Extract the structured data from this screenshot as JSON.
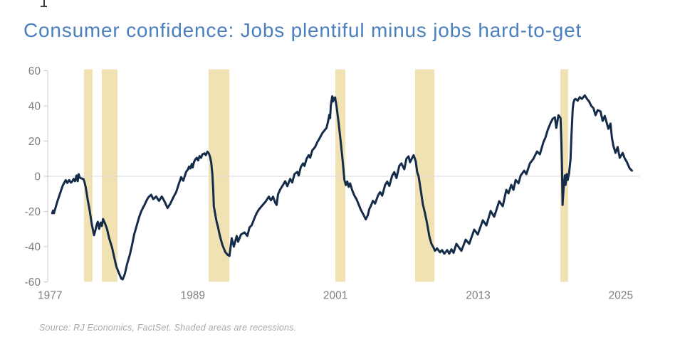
{
  "window": {
    "artifact_icon": "text-cursor-icon"
  },
  "source_note": "Source: RJ Economics, FactSet. Shaded areas are recessions.",
  "colors": {
    "title": "#4a80bd",
    "line": "#142c49",
    "recession_band": "#f1e2b4",
    "zero_gridline": "#d9d9d9",
    "axis": "#c9c9c9",
    "tick_label": "#808080",
    "source_text": "#a8a8a8",
    "background": "#ffffff"
  },
  "chart_data": {
    "type": "line",
    "title": "Consumer confidence: Jobs plentiful minus jobs hard-to-get",
    "xlabel": "",
    "ylabel": "",
    "legend": "none",
    "grid": "zero-line-only",
    "x_ticks": [
      1977,
      1989,
      2001,
      2013,
      2025
    ],
    "y_ticks": [
      60,
      40,
      20,
      0,
      -20,
      -40,
      -60
    ],
    "ylim": [
      -60,
      60
    ],
    "xlim": [
      1976.8,
      2026.56
    ],
    "band_color": "#f1e2b4",
    "line_color": "#142c49",
    "recession_bands": [
      [
        1979.85,
        1980.57
      ],
      [
        1981.35,
        1982.67
      ],
      [
        1990.33,
        1992.07
      ],
      [
        2000.99,
        2001.83
      ],
      [
        2007.7,
        2009.32
      ],
      [
        2019.91,
        2020.57
      ]
    ],
    "series": [
      {
        "name": "Jobs plentiful minus jobs hard-to-get",
        "points": [
          [
            1977.18,
            -21
          ],
          [
            1977.25,
            -19.5
          ],
          [
            1977.32,
            -21
          ],
          [
            1977.45,
            -18
          ],
          [
            1977.6,
            -14.5
          ],
          [
            1977.75,
            -11.5
          ],
          [
            1977.9,
            -8.5
          ],
          [
            1978.05,
            -5.5
          ],
          [
            1978.2,
            -3.5
          ],
          [
            1978.32,
            -2.2
          ],
          [
            1978.45,
            -3.8
          ],
          [
            1978.6,
            -2.2
          ],
          [
            1978.75,
            -3.6
          ],
          [
            1978.9,
            -2.6
          ],
          [
            1978.98,
            -1.5
          ],
          [
            1979.1,
            -2.8
          ],
          [
            1979.22,
            0.4
          ],
          [
            1979.32,
            -2.8
          ],
          [
            1979.4,
            1.2
          ],
          [
            1979.5,
            -0.8
          ],
          [
            1979.63,
            -1.2
          ],
          [
            1979.81,
            -1.6
          ],
          [
            1979.9,
            -3.5
          ],
          [
            1979.99,
            -6.1
          ],
          [
            1980.08,
            -9.7
          ],
          [
            1980.17,
            -13.7
          ],
          [
            1980.29,
            -17.8
          ],
          [
            1980.41,
            -23
          ],
          [
            1980.5,
            -27
          ],
          [
            1980.59,
            -30
          ],
          [
            1980.7,
            -33.5
          ],
          [
            1980.8,
            -31
          ],
          [
            1980.9,
            -28
          ],
          [
            1981.01,
            -25.9
          ],
          [
            1981.13,
            -29.9
          ],
          [
            1981.25,
            -26.3
          ],
          [
            1981.35,
            -28.3
          ],
          [
            1981.45,
            -24.3
          ],
          [
            1981.6,
            -26.5
          ],
          [
            1981.79,
            -29.9
          ],
          [
            1981.97,
            -35.2
          ],
          [
            1982.21,
            -40.4
          ],
          [
            1982.39,
            -46
          ],
          [
            1982.57,
            -51.3
          ],
          [
            1982.81,
            -55.4
          ],
          [
            1982.99,
            -58.2
          ],
          [
            1983.11,
            -58.6
          ],
          [
            1983.29,
            -55.4
          ],
          [
            1983.47,
            -50
          ],
          [
            1983.71,
            -44.5
          ],
          [
            1983.89,
            -39.2
          ],
          [
            1984.07,
            -33.1
          ],
          [
            1984.2,
            -30
          ],
          [
            1984.37,
            -26
          ],
          [
            1984.5,
            -23
          ],
          [
            1984.66,
            -20
          ],
          [
            1984.8,
            -18
          ],
          [
            1984.96,
            -16
          ],
          [
            1985.1,
            -14
          ],
          [
            1985.26,
            -12
          ],
          [
            1985.5,
            -10.5
          ],
          [
            1985.68,
            -13
          ],
          [
            1985.92,
            -11.5
          ],
          [
            1986.16,
            -14
          ],
          [
            1986.4,
            -11.5
          ],
          [
            1986.64,
            -14.5
          ],
          [
            1986.88,
            -18
          ],
          [
            1987.12,
            -15.5
          ],
          [
            1987.36,
            -12
          ],
          [
            1987.6,
            -9
          ],
          [
            1987.84,
            -4
          ],
          [
            1988.02,
            -0.5
          ],
          [
            1988.2,
            -2.5
          ],
          [
            1988.44,
            2.5
          ],
          [
            1988.6,
            4
          ],
          [
            1988.68,
            5.5
          ],
          [
            1988.8,
            4.5
          ],
          [
            1988.92,
            7
          ],
          [
            1989.0,
            5
          ],
          [
            1989.1,
            8
          ],
          [
            1989.2,
            9.5
          ],
          [
            1989.34,
            10.5
          ],
          [
            1989.45,
            9
          ],
          [
            1989.57,
            11.5
          ],
          [
            1989.7,
            10.5
          ],
          [
            1989.81,
            12.5
          ],
          [
            1990.0,
            13
          ],
          [
            1990.1,
            12
          ],
          [
            1990.23,
            14
          ],
          [
            1990.35,
            13
          ],
          [
            1990.45,
            11
          ],
          [
            1990.55,
            8
          ],
          [
            1990.65,
            1
          ],
          [
            1990.72,
            -8
          ],
          [
            1990.77,
            -17
          ],
          [
            1990.9,
            -22
          ],
          [
            1991.01,
            -26
          ],
          [
            1991.13,
            -29
          ],
          [
            1991.25,
            -33
          ],
          [
            1991.37,
            -36
          ],
          [
            1991.49,
            -39
          ],
          [
            1991.61,
            -41
          ],
          [
            1991.73,
            -43
          ],
          [
            1991.85,
            -44
          ],
          [
            1991.97,
            -44.8
          ],
          [
            1992.09,
            -45.3
          ],
          [
            1992.27,
            -35.2
          ],
          [
            1992.45,
            -40
          ],
          [
            1992.69,
            -33.9
          ],
          [
            1992.81,
            -37.2
          ],
          [
            1993.05,
            -33.1
          ],
          [
            1993.35,
            -31.9
          ],
          [
            1993.59,
            -33.9
          ],
          [
            1993.77,
            -29.1
          ],
          [
            1993.95,
            -27.9
          ],
          [
            1994.19,
            -23.8
          ],
          [
            1994.37,
            -21
          ],
          [
            1994.55,
            -19
          ],
          [
            1994.79,
            -17
          ],
          [
            1994.97,
            -15.6
          ],
          [
            1995.15,
            -14.2
          ],
          [
            1995.39,
            -11.6
          ],
          [
            1995.57,
            -13.6
          ],
          [
            1995.75,
            -11.6
          ],
          [
            1995.93,
            -15
          ],
          [
            1996.05,
            -16.3
          ],
          [
            1996.17,
            -10.2
          ],
          [
            1996.35,
            -7.5
          ],
          [
            1996.59,
            -4.9
          ],
          [
            1996.77,
            -2.8
          ],
          [
            1996.95,
            -5.6
          ],
          [
            1997.19,
            -1.5
          ],
          [
            1997.37,
            -3.5
          ],
          [
            1997.55,
            1.2
          ],
          [
            1997.79,
            2.5
          ],
          [
            1997.91,
            0.4
          ],
          [
            1998.09,
            5.3
          ],
          [
            1998.27,
            7.3
          ],
          [
            1998.39,
            5.9
          ],
          [
            1998.57,
            10
          ],
          [
            1998.75,
            12
          ],
          [
            1998.87,
            10.6
          ],
          [
            1999.05,
            14.7
          ],
          [
            1999.29,
            16.7
          ],
          [
            1999.47,
            19.4
          ],
          [
            1999.65,
            21.4
          ],
          [
            1999.89,
            24.5
          ],
          [
            2000.07,
            26
          ],
          [
            2000.25,
            27.5
          ],
          [
            2000.37,
            31
          ],
          [
            2000.49,
            35
          ],
          [
            2000.55,
            33
          ],
          [
            2000.61,
            40
          ],
          [
            2000.67,
            43
          ],
          [
            2000.73,
            45.5
          ],
          [
            2000.79,
            42.5
          ],
          [
            2000.85,
            44.5
          ],
          [
            2000.91,
            43.5
          ],
          [
            2000.97,
            44.8
          ],
          [
            2001.09,
            40
          ],
          [
            2001.27,
            30
          ],
          [
            2001.45,
            19
          ],
          [
            2001.63,
            7
          ],
          [
            2001.75,
            -2
          ],
          [
            2001.87,
            -5
          ],
          [
            2001.99,
            -3
          ],
          [
            2002.11,
            -6
          ],
          [
            2002.23,
            -4
          ],
          [
            2002.41,
            -8
          ],
          [
            2002.59,
            -11
          ],
          [
            2002.77,
            -13
          ],
          [
            2002.95,
            -16
          ],
          [
            2003.13,
            -19
          ],
          [
            2003.37,
            -22
          ],
          [
            2003.55,
            -24.5
          ],
          [
            2003.73,
            -22
          ],
          [
            2003.85,
            -18.5
          ],
          [
            2003.97,
            -17
          ],
          [
            2004.15,
            -14
          ],
          [
            2004.33,
            -15.5
          ],
          [
            2004.57,
            -11
          ],
          [
            2004.75,
            -9
          ],
          [
            2004.93,
            -11
          ],
          [
            2005.17,
            -5
          ],
          [
            2005.35,
            -3
          ],
          [
            2005.53,
            -5.5
          ],
          [
            2005.77,
            0.4
          ],
          [
            2005.95,
            2.4
          ],
          [
            2006.13,
            -1
          ],
          [
            2006.37,
            6
          ],
          [
            2006.55,
            7.3
          ],
          [
            2006.79,
            4
          ],
          [
            2006.97,
            10
          ],
          [
            2007.15,
            11.3
          ],
          [
            2007.27,
            8
          ],
          [
            2007.45,
            10.5
          ],
          [
            2007.57,
            12
          ],
          [
            2007.75,
            8.5
          ],
          [
            2007.87,
            2.4
          ],
          [
            2007.99,
            0
          ],
          [
            2008.17,
            -7.7
          ],
          [
            2008.35,
            -16
          ],
          [
            2008.53,
            -21
          ],
          [
            2008.71,
            -27
          ],
          [
            2008.89,
            -34
          ],
          [
            2009.07,
            -38.4
          ],
          [
            2009.25,
            -40.5
          ],
          [
            2009.37,
            -42.4
          ],
          [
            2009.55,
            -41
          ],
          [
            2009.79,
            -43.2
          ],
          [
            2009.97,
            -42
          ],
          [
            2010.15,
            -44
          ],
          [
            2010.39,
            -42
          ],
          [
            2010.57,
            -44
          ],
          [
            2010.75,
            -41.5
          ],
          [
            2010.93,
            -43.5
          ],
          [
            2011.17,
            -38.4
          ],
          [
            2011.59,
            -42.4
          ],
          [
            2011.95,
            -36
          ],
          [
            2012.25,
            -38.4
          ],
          [
            2012.67,
            -30.3
          ],
          [
            2012.97,
            -33.1
          ],
          [
            2013.39,
            -25
          ],
          [
            2013.69,
            -27.9
          ],
          [
            2014.05,
            -19.7
          ],
          [
            2014.35,
            -23
          ],
          [
            2014.77,
            -14.2
          ],
          [
            2015.07,
            -17
          ],
          [
            2015.37,
            -7.7
          ],
          [
            2015.55,
            -9.7
          ],
          [
            2015.79,
            -4.9
          ],
          [
            2015.97,
            -7.7
          ],
          [
            2016.15,
            -2.1
          ],
          [
            2016.39,
            -4
          ],
          [
            2016.57,
            0.4
          ],
          [
            2016.87,
            3.2
          ],
          [
            2017.05,
            1.2
          ],
          [
            2017.35,
            7.3
          ],
          [
            2017.65,
            10
          ],
          [
            2017.95,
            14.1
          ],
          [
            2018.19,
            12.5
          ],
          [
            2018.49,
            19.4
          ],
          [
            2018.67,
            22.2
          ],
          [
            2018.85,
            26.3
          ],
          [
            2019.09,
            30.3
          ],
          [
            2019.27,
            32.7
          ],
          [
            2019.45,
            33.5
          ],
          [
            2019.57,
            27.5
          ],
          [
            2019.75,
            34.7
          ],
          [
            2019.93,
            33
          ],
          [
            2020.0,
            20
          ],
          [
            2020.05,
            5
          ],
          [
            2020.1,
            -16.3
          ],
          [
            2020.2,
            -5
          ],
          [
            2020.29,
            0.5
          ],
          [
            2020.35,
            -4.9
          ],
          [
            2020.45,
            1.2
          ],
          [
            2020.53,
            -2.1
          ],
          [
            2020.65,
            2
          ],
          [
            2020.77,
            10
          ],
          [
            2020.85,
            23.4
          ],
          [
            2020.95,
            38
          ],
          [
            2021.01,
            41.6
          ],
          [
            2021.1,
            43.6
          ],
          [
            2021.19,
            44
          ],
          [
            2021.37,
            43
          ],
          [
            2021.55,
            45
          ],
          [
            2021.73,
            44
          ],
          [
            2021.97,
            46
          ],
          [
            2022.15,
            44
          ],
          [
            2022.33,
            42.5
          ],
          [
            2022.51,
            40
          ],
          [
            2022.69,
            38.8
          ],
          [
            2022.87,
            34.7
          ],
          [
            2023.05,
            37.6
          ],
          [
            2023.29,
            36.8
          ],
          [
            2023.47,
            31.5
          ],
          [
            2023.65,
            34.3
          ],
          [
            2023.95,
            27
          ],
          [
            2024.13,
            30
          ],
          [
            2024.25,
            22
          ],
          [
            2024.37,
            17.4
          ],
          [
            2024.55,
            13.3
          ],
          [
            2024.73,
            16.6
          ],
          [
            2024.91,
            10.5
          ],
          [
            2025.15,
            13.3
          ],
          [
            2025.33,
            10.1
          ],
          [
            2025.51,
            8.1
          ],
          [
            2025.63,
            6.1
          ],
          [
            2025.75,
            4.4
          ],
          [
            2025.93,
            3.2
          ]
        ]
      }
    ]
  }
}
